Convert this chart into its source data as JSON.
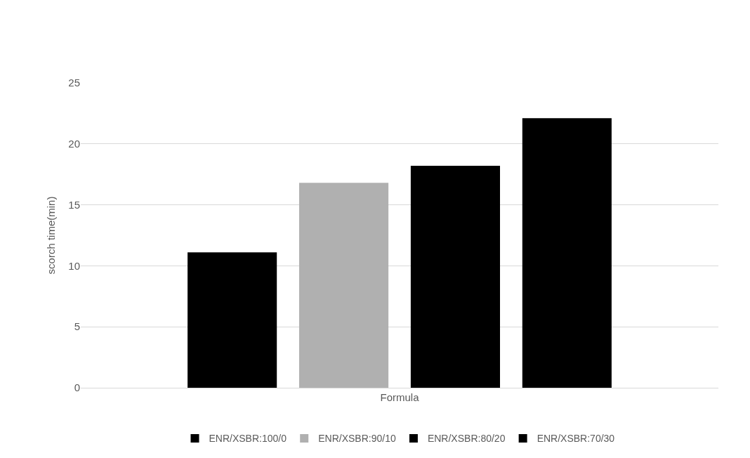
{
  "chart_data": {
    "type": "bar",
    "ylabel": "scorch time(min)",
    "categories": [
      "Formula"
    ],
    "series": [
      {
        "name": "ENR/XSBR:100/0",
        "color": "#000000",
        "values": [
          11.1
        ]
      },
      {
        "name": "ENR/XSBR:90/10",
        "color": "#b0b0b0",
        "values": [
          16.8
        ]
      },
      {
        "name": "ENR/XSBR:80/20",
        "color": "#000000",
        "values": [
          18.2
        ]
      },
      {
        "name": "ENR/XSBR:70/30",
        "color": "#000000",
        "values": [
          22.1
        ]
      }
    ],
    "ylim": [
      0,
      25
    ],
    "yticks": [
      0,
      5,
      10,
      15,
      20,
      25
    ],
    "grid": "y",
    "legend": "bottom"
  }
}
